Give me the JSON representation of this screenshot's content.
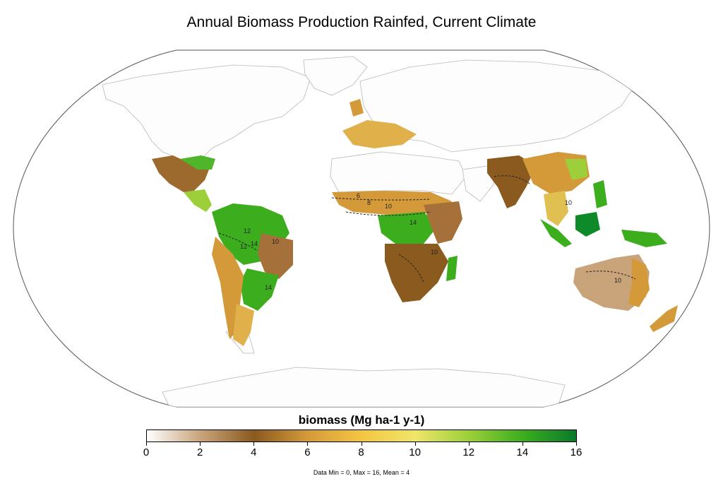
{
  "title": "Annual Biomass Production Rainfed, Current Climate",
  "legend": {
    "title": "biomass (Mg ha-1 y-1)",
    "ticks": [
      "0",
      "2",
      "4",
      "6",
      "8",
      "10",
      "12",
      "14",
      "16"
    ],
    "min": 0,
    "max": 16,
    "colors": [
      "#ffffff",
      "#c9a47a",
      "#8a5a1e",
      "#d49a3a",
      "#f4c542",
      "#f0e66a",
      "#9ccf3a",
      "#3cae1e",
      "#0a7a2a"
    ]
  },
  "stats": "Data Min = 0, Max = 16, Mean = 4",
  "contour_labels": [
    "10",
    "12",
    "14",
    "10",
    "14",
    "10",
    "14",
    "10",
    "12",
    "6",
    "8",
    "10"
  ],
  "colors": {
    "ocean": "#ffffff",
    "land_outline": "#b8b8b8",
    "frame": "#555555",
    "contour": "#222222"
  }
}
